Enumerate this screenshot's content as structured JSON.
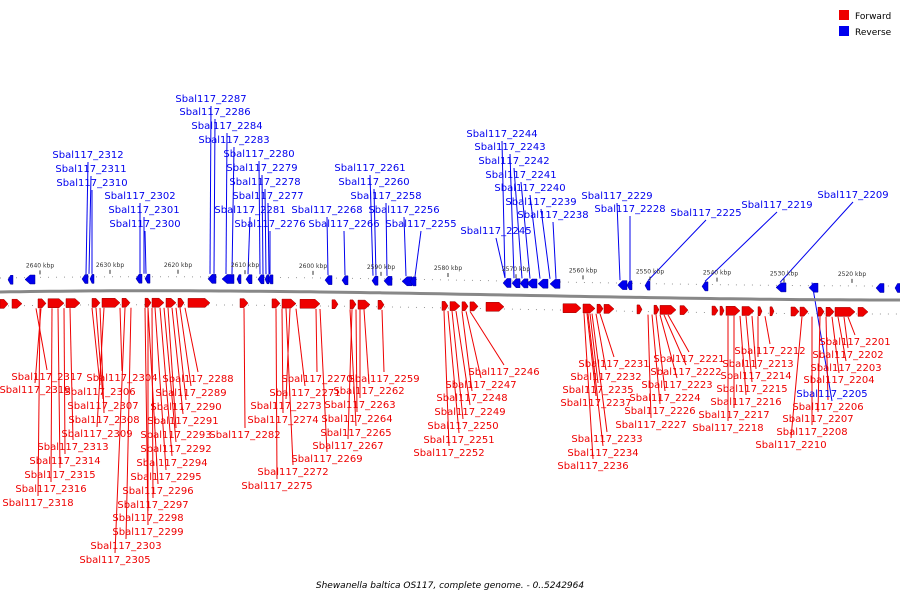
{
  "caption": "Shewanella baltica OS117, complete genome. - 0..5242964",
  "legend": [
    {
      "label": "Forward",
      "color": "#ee0000"
    },
    {
      "label": "Reverse",
      "color": "#0000ee"
    }
  ],
  "colors": {
    "forward": "#ee0000",
    "reverse": "#0000ee",
    "backbone": "#777777"
  },
  "ticks": [
    "2640 kbp",
    "2630 kbp",
    "2620 kbp",
    "2610 kbp",
    "2600 kbp",
    "2590 kbp",
    "2580 kbp",
    "2570 kbp",
    "2560 kbp",
    "2550 kbp",
    "2540 kbp",
    "2530 kbp",
    "2520 kbp"
  ],
  "reverse_labels": [
    "Sbal117_2312",
    "Sbal117_2311",
    "Sbal117_2310",
    "Sbal117_2302",
    "Sbal117_2301",
    "Sbal117_2300",
    "Sbal117_2287",
    "Sbal117_2286",
    "Sbal117_2284",
    "Sbal117_2283",
    "Sbal117_2280",
    "Sbal117_2279",
    "Sbal117_2278",
    "Sbal117_2277",
    "Sbal117_2281",
    "Sbal117_2276",
    "Sbal117_2268",
    "Sbal117_2266",
    "Sbal117_2261",
    "Sbal117_2260",
    "Sbal117_2258",
    "Sbal117_2256",
    "Sbal117_2255",
    "Sbal117_2244",
    "Sbal117_2243",
    "Sbal117_2242",
    "Sbal117_2241",
    "Sbal117_2240",
    "Sbal117_2239",
    "Sbal117_2238",
    "Sbal117_2245",
    "Sbal117_2229",
    "Sbal117_2228",
    "Sbal117_2225",
    "Sbal117_2219",
    "Sbal117_2209",
    "Sbal117_2205"
  ],
  "forward_labels": [
    "Sbal117_2317",
    "Sbal117_2319",
    "Sbal117_2306",
    "Sbal117_2307",
    "Sbal117_2308",
    "Sbal117_2309",
    "Sbal117_2313",
    "Sbal117_2314",
    "Sbal117_2315",
    "Sbal117_2316",
    "Sbal117_2318",
    "Sbal117_2304",
    "Sbal117_2296",
    "Sbal117_2297",
    "Sbal117_2298",
    "Sbal117_2299",
    "Sbal117_2303",
    "Sbal117_2305",
    "Sbal117_2288",
    "Sbal117_2289",
    "Sbal117_2290",
    "Sbal117_2291",
    "Sbal117_2293",
    "Sbal117_2292",
    "Sbal117_2294",
    "Sbal117_2295",
    "Sbal117_2282",
    "Sbal117_2270",
    "Sbal117_2271",
    "Sbal117_2273",
    "Sbal117_2274",
    "Sbal117_2272",
    "Sbal117_2275",
    "Sbal117_2269",
    "Sbal117_2259",
    "Sbal117_2262",
    "Sbal117_2263",
    "Sbal117_2264",
    "Sbal117_2265",
    "Sbal117_2267",
    "Sbal117_2246",
    "Sbal117_2247",
    "Sbal117_2248",
    "Sbal117_2249",
    "Sbal117_2250",
    "Sbal117_2251",
    "Sbal117_2252",
    "Sbal117_2231",
    "Sbal117_2232",
    "Sbal117_2235",
    "Sbal117_2237",
    "Sbal117_2233",
    "Sbal117_2234",
    "Sbal117_2236",
    "Sbal117_2221",
    "Sbal117_2222",
    "Sbal117_2223",
    "Sbal117_2224",
    "Sbal117_2226",
    "Sbal117_2227",
    "Sbal117_2212",
    "Sbal117_2213",
    "Sbal117_2214",
    "Sbal117_2215",
    "Sbal117_2216",
    "Sbal117_2217",
    "Sbal117_2218",
    "Sbal117_2201",
    "Sbal117_2202",
    "Sbal117_2203",
    "Sbal117_2204",
    "Sbal117_2206",
    "Sbal117_2207",
    "Sbal117_2208",
    "Sbal117_2210"
  ]
}
